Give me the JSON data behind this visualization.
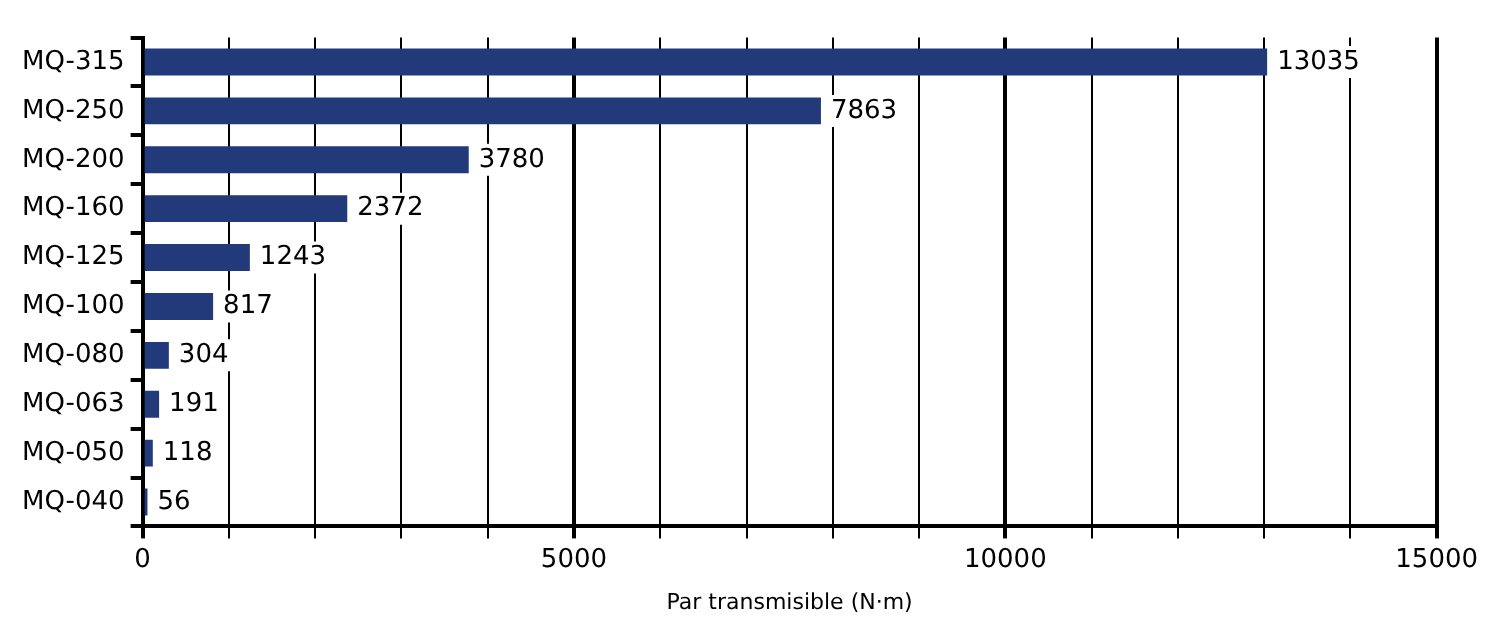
{
  "chart_data": {
    "type": "bar",
    "orientation": "horizontal",
    "xlabel": "Par transmisible (N·m)",
    "categories": [
      "MQ-315",
      "MQ-250",
      "MQ-200",
      "MQ-160",
      "MQ-125",
      "MQ-100",
      "MQ-080",
      "MQ-063",
      "MQ-050",
      "MQ-040"
    ],
    "values": [
      13035,
      7863,
      3780,
      2372,
      1243,
      817,
      304,
      191,
      118,
      56
    ],
    "color": "#233a7a",
    "data_labels": true,
    "grid": "x",
    "legend": false,
    "xlim": [
      0,
      15000
    ],
    "xticks": [
      0,
      {
        "value": 1000,
        "label": null
      },
      {
        "value": 2000,
        "label": null
      },
      {
        "value": 3000,
        "label": null
      },
      {
        "value": 4000,
        "label": null
      },
      5000,
      {
        "value": 6000,
        "label": null
      },
      {
        "value": 7000,
        "label": null
      },
      {
        "value": 8000,
        "label": null
      },
      {
        "value": 9000,
        "label": null
      },
      10000,
      {
        "value": 11000,
        "label": null
      },
      {
        "value": 12000,
        "label": null
      },
      {
        "value": 13000,
        "label": null
      },
      {
        "value": 14000,
        "label": null
      },
      15000
    ]
  }
}
